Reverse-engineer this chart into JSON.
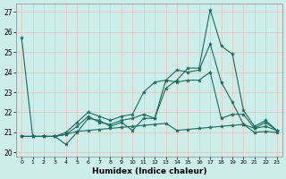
{
  "title": "",
  "xlabel": "Humidex (Indice chaleur)",
  "ylabel": "",
  "background_color": "#cceee8",
  "grid_color": "#e8c8c8",
  "line_color": "#1a6b5a",
  "xlim": [
    -0.5,
    23.5
  ],
  "ylim": [
    19.8,
    27.4
  ],
  "yticks": [
    20,
    21,
    22,
    23,
    24,
    25,
    26,
    27
  ],
  "xticks": [
    0,
    1,
    2,
    3,
    4,
    5,
    6,
    7,
    8,
    9,
    10,
    11,
    12,
    13,
    14,
    15,
    16,
    17,
    18,
    19,
    20,
    21,
    22,
    23
  ],
  "series": [
    [
      25.7,
      20.8,
      20.8,
      20.8,
      20.4,
      21.0,
      21.7,
      21.6,
      21.3,
      21.5,
      21.1,
      21.7,
      21.7,
      23.2,
      23.6,
      24.2,
      24.2,
      27.1,
      25.3,
      24.9,
      22.1,
      21.3,
      21.6,
      21.1
    ],
    [
      20.8,
      20.8,
      20.8,
      20.8,
      20.9,
      21.3,
      21.8,
      21.5,
      21.4,
      21.6,
      21.7,
      21.9,
      21.7,
      23.6,
      23.5,
      23.6,
      23.6,
      24.0,
      21.7,
      21.9,
      21.9,
      21.2,
      21.3,
      21.1
    ],
    [
      20.8,
      20.8,
      20.8,
      20.8,
      21.0,
      21.5,
      22.0,
      21.8,
      21.6,
      21.8,
      21.9,
      23.0,
      23.5,
      23.6,
      24.1,
      24.0,
      24.1,
      25.4,
      23.5,
      22.5,
      21.4,
      21.2,
      21.5,
      21.1
    ],
    [
      20.8,
      20.8,
      20.8,
      20.8,
      20.9,
      21.05,
      21.1,
      21.15,
      21.2,
      21.25,
      21.3,
      21.35,
      21.4,
      21.45,
      21.1,
      21.15,
      21.2,
      21.25,
      21.3,
      21.35,
      21.4,
      21.0,
      21.05,
      21.0
    ]
  ]
}
